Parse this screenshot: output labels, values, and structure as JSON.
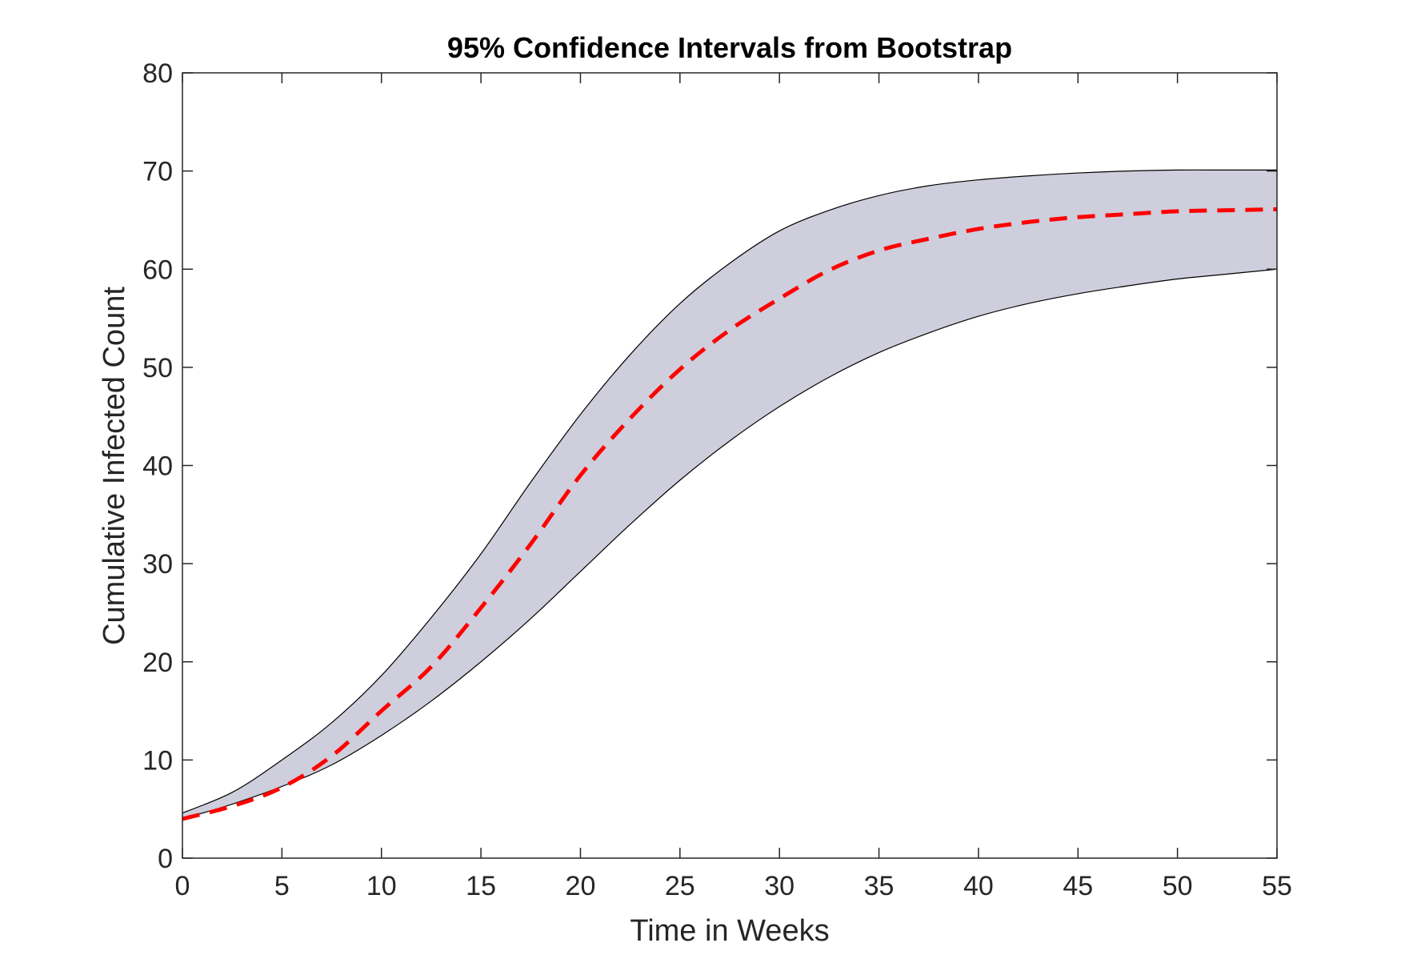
{
  "chart_data": {
    "type": "area",
    "title": "95% Confidence Intervals from Bootstrap",
    "xlabel": "Time in Weeks",
    "ylabel": "Cumulative Infected Count",
    "xlim": [
      0,
      55
    ],
    "ylim": [
      0,
      80
    ],
    "xticks": [
      0,
      5,
      10,
      15,
      20,
      25,
      30,
      35,
      40,
      45,
      50,
      55
    ],
    "yticks": [
      0,
      10,
      20,
      30,
      40,
      50,
      60,
      70,
      80
    ],
    "grid": false,
    "x": [
      0,
      2.5,
      5,
      7.5,
      10,
      12.5,
      15,
      17.5,
      20,
      22.5,
      25,
      27.5,
      30,
      32.5,
      35,
      37.5,
      40,
      42.5,
      45,
      47.5,
      50,
      52.5,
      55
    ],
    "series": [
      {
        "role": "upper-bound",
        "values": [
          4.6,
          6.7,
          10.0,
          13.8,
          18.6,
          24.5,
          31.0,
          38.3,
          45.2,
          51.3,
          56.5,
          60.6,
          63.9,
          66.0,
          67.5,
          68.5,
          69.1,
          69.5,
          69.8,
          70.0,
          70.1,
          70.1,
          70.1
        ],
        "color": "#000000"
      },
      {
        "role": "lower-bound",
        "values": [
          4.0,
          5.5,
          7.3,
          9.5,
          12.5,
          16.0,
          20.0,
          24.4,
          29.2,
          34.0,
          38.5,
          42.5,
          46.0,
          49.0,
          51.5,
          53.5,
          55.2,
          56.5,
          57.5,
          58.3,
          59.0,
          59.5,
          60.0
        ],
        "color": "#000000"
      },
      {
        "role": "estimate",
        "values": [
          4.0,
          5.3,
          7.2,
          10.4,
          15.0,
          19.5,
          25.5,
          32.0,
          39.0,
          44.8,
          49.8,
          53.8,
          57.0,
          59.9,
          61.9,
          63.1,
          64.1,
          64.8,
          65.3,
          65.6,
          65.9,
          66.0,
          66.1
        ],
        "color": "#ff0000",
        "style": "dashed"
      }
    ],
    "band_fill": "#cecedc",
    "axis_color": "#262626"
  }
}
